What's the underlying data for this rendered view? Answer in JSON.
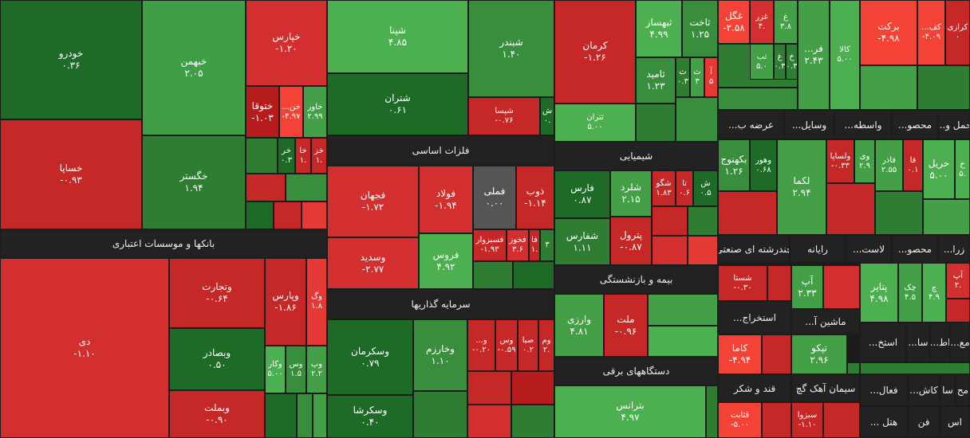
{
  "tiles": [
    {
      "name": "خودرو",
      "change": "۰.۳۶",
      "color": "#1e6b27"
    },
    {
      "name": "خساپا",
      "change": "-۰.۹۳",
      "color": "#c62828"
    },
    {
      "name": "خبهمن",
      "change": "۲.۰۵",
      "color": "#3f9e46"
    },
    {
      "name": "خگستر",
      "change": "۱.۹۴",
      "color": "#2e7d32"
    },
    {
      "name": "خپارس",
      "change": "-۱.۲۰",
      "color": "#d32f2f"
    },
    {
      "name": "ختوقا",
      "change": "-۱.۰۳",
      "color": "#b71c1c"
    },
    {
      "name": "خن...",
      "change": "-۴.۹۷",
      "color": "#f44336"
    },
    {
      "name": "خاور",
      "change": "۲.۹۹",
      "color": "#43a047"
    },
    {
      "name": "خر",
      "change": "۰.۳",
      "color": "#1e6b27"
    },
    {
      "name": "خا",
      "change": "۱.",
      "color": "#c62828"
    },
    {
      "name": "خز",
      "change": "۱.",
      "color": "#c62828"
    },
    {
      "name": "دی",
      "change": "-۱.۱۰",
      "color": "#d32f2f"
    },
    {
      "name": "وتجارت",
      "change": "-۰.۶۴",
      "color": "#c62828"
    },
    {
      "name": "وبصادر",
      "change": "۰.۵۰",
      "color": "#1e6b27"
    },
    {
      "name": "وبملت",
      "change": "-۰.۹۰",
      "color": "#c62828"
    },
    {
      "name": "وپارس",
      "change": "-۱.۸۶",
      "color": "#c62828"
    },
    {
      "name": "وگ",
      "change": "۱.۸",
      "color": "#e53935"
    },
    {
      "name": "وکار",
      "change": "۵.۰۰",
      "color": "#4caf50"
    },
    {
      "name": "وس",
      "change": "۱.۵",
      "color": "#388e3c"
    },
    {
      "name": "وپ",
      "change": "۲.۲",
      "color": "#43a047"
    },
    {
      "name": "شپنا",
      "change": "۴.۸۵",
      "color": "#4caf50"
    },
    {
      "name": "شتران",
      "change": "۰.۶۱",
      "color": "#1e6b27"
    },
    {
      "name": "شبندر",
      "change": "۱.۴۰",
      "color": "#388e3c"
    },
    {
      "name": "شپسا",
      "change": "-۰.۷۶",
      "color": "#c62828"
    },
    {
      "name": "ش",
      "change": "۰.",
      "color": "#1e6b27"
    },
    {
      "name": "فجهان",
      "change": "-۱.۷۲",
      "color": "#d32f2f"
    },
    {
      "name": "فولاد",
      "change": "-۱.۹۴",
      "color": "#d32f2f"
    },
    {
      "name": "فملی",
      "change": "۰.۰۰",
      "color": "#555555"
    },
    {
      "name": "ذوب",
      "change": "-۱.۱۴",
      "color": "#c62828"
    },
    {
      "name": "وسدید",
      "change": "-۲.۷۷",
      "color": "#d32f2f"
    },
    {
      "name": "فروس",
      "change": "۴.۹۲",
      "color": "#4caf50"
    },
    {
      "name": "فسبزوار",
      "change": "-۱.۹۳",
      "color": "#c62828"
    },
    {
      "name": "فخوز",
      "change": "۳.۶",
      "color": "#d32f2f"
    },
    {
      "name": "فا",
      "change": "۱.",
      "color": "#c62828"
    },
    {
      "name": "۳",
      "change": "",
      "color": "#2e7d32"
    },
    {
      "name": "وسکرمان",
      "change": "۰.۷۹",
      "color": "#1e6b27"
    },
    {
      "name": "وسکرشا",
      "change": "۰.۴۰",
      "color": "#1e6b27"
    },
    {
      "name": "وخارزم",
      "change": "۱.۱۰",
      "color": "#388e3c"
    },
    {
      "name": "و...",
      "change": "-۰.۲۰",
      "color": "#c62828"
    },
    {
      "name": "وس",
      "change": "-۰.۵۹",
      "color": "#c62828"
    },
    {
      "name": "صبا",
      "change": "۰.۲",
      "color": "#c62828"
    },
    {
      "name": "وم",
      "change": "۲.",
      "color": "#c62828"
    },
    {
      "name": "کرمان",
      "change": "-۱.۲۶",
      "color": "#c62828"
    },
    {
      "name": "ثتران",
      "change": "۵.۰۰",
      "color": "#4caf50"
    },
    {
      "name": "ثبهساز",
      "change": "۴.۹۹",
      "color": "#4caf50"
    },
    {
      "name": "ثاخت",
      "change": "۱.۲۵",
      "color": "#388e3c"
    },
    {
      "name": "ثامید",
      "change": "۱.۲۳",
      "color": "#388e3c"
    },
    {
      "name": "ث",
      "change": "۰.۳",
      "color": "#2e7d32"
    },
    {
      "name": "ث",
      "change": "۳",
      "color": "#43a047"
    },
    {
      "name": "آ",
      "change": "۵",
      "color": "#e53935"
    },
    {
      "name": "فارس",
      "change": "۰.۸۷",
      "color": "#1e6b27"
    },
    {
      "name": "شفارس",
      "change": "۱.۱۱",
      "color": "#2e7d32"
    },
    {
      "name": "شلرد",
      "change": "۲.۱۵",
      "color": "#43a047"
    },
    {
      "name": "پترول",
      "change": "-۰.۸۷",
      "color": "#c62828"
    },
    {
      "name": "شگو",
      "change": "۱.۸۳",
      "color": "#c62828"
    },
    {
      "name": "تا",
      "change": "۰.۶",
      "color": "#c62828"
    },
    {
      "name": "ش",
      "change": "۰.۵",
      "color": "#1e6b27"
    },
    {
      "name": "وارزی",
      "change": "۴.۸۱",
      "color": "#43a047"
    },
    {
      "name": "ملت",
      "change": "-۰.۹۶",
      "color": "#c62828"
    },
    {
      "name": "بترانس",
      "change": "۴.۹۷",
      "color": "#4caf50"
    },
    {
      "name": "غگل",
      "change": "-۲.۵۸",
      "color": "#f44336"
    },
    {
      "name": "غزر",
      "change": "۴.",
      "color": "#d32f2f"
    },
    {
      "name": "غ",
      "change": "۳.۸",
      "color": "#43a047"
    },
    {
      "name": "تب",
      "change": "۵.۰",
      "color": "#43a047"
    },
    {
      "name": "غ",
      "change": "۰.۳",
      "color": "#2e7d32"
    },
    {
      "name": "خ",
      "change": "۰.۳",
      "color": "#2e7d32"
    },
    {
      "name": "فر...",
      "change": "۲.۴۳",
      "color": "#43a047"
    },
    {
      "name": "کالا",
      "change": "۵.۰۰",
      "color": "#4caf50"
    },
    {
      "name": "برکت",
      "change": "-۴.۹۸",
      "color": "#f44336"
    },
    {
      "name": "کف...",
      "change": "-۴.۰۹",
      "color": "#f44336"
    },
    {
      "name": "کرازی",
      "change": "۰",
      "color": "#c62828"
    },
    {
      "name": "بکهنوج",
      "change": "۱.۲۶",
      "color": "#388e3c"
    },
    {
      "name": "وهور",
      "change": "۰.۶۸",
      "color": "#1e6b27"
    },
    {
      "name": "لکما",
      "change": "۲.۹۴",
      "color": "#43a047"
    },
    {
      "name": "ولساپا",
      "change": "-۰.۳۳",
      "color": "#c62828"
    },
    {
      "name": "وی",
      "change": "۲.۹",
      "color": "#43a047"
    },
    {
      "name": "فاذر",
      "change": "۲.۵۵",
      "color": "#43a047"
    },
    {
      "name": "فا",
      "change": "۰.۱",
      "color": "#c62828"
    },
    {
      "name": "حریل",
      "change": "۵.۰۰",
      "color": "#4caf50"
    },
    {
      "name": "ح",
      "change": "۵.",
      "color": "#4caf50"
    },
    {
      "name": "شستا",
      "change": "-۰.۳۰",
      "color": "#c62828"
    },
    {
      "name": "آپ",
      "change": "۲.۳۳",
      "color": "#43a047"
    },
    {
      "name": "پتایر",
      "change": "۴.۹۸",
      "color": "#4caf50"
    },
    {
      "name": "چک",
      "change": "۴.۵",
      "color": "#43a047"
    },
    {
      "name": "چ",
      "change": "۴.۹",
      "color": "#4caf50"
    },
    {
      "name": "آپ",
      "change": "۲.",
      "color": "#d32f2f"
    },
    {
      "name": "کاما",
      "change": "-۴.۹۴",
      "color": "#f44336"
    },
    {
      "name": "تپکو",
      "change": "۲.۹۶",
      "color": "#43a047"
    },
    {
      "name": "قثابت",
      "change": "-۵.۰۰",
      "color": "#f44336"
    },
    {
      "name": "سبزوا",
      "change": "-۱.۱۰",
      "color": "#c62828"
    }
  ],
  "headers": [
    "بانکها و موسسات اعتباری",
    "فلزات اساسی",
    "سرمایه گذاریها",
    "شیمیایی",
    "بیمه و بازنشستگی",
    "دستگاههای برقی",
    "حمل و...",
    "محصو...",
    "واسطه...",
    "وسایل...",
    "عرضه ب...",
    "چندرشته ای صنعتی",
    "رایانه",
    "لاست...",
    "محصو...",
    "زرا...",
    "استخراج...",
    "ماشین آ...",
    "استخ...",
    "سا...",
    "اط...",
    "مع...",
    "قند و شکر",
    "سیمان آهک گچ",
    "فعال...",
    "کاش...",
    "سا",
    "مح",
    "هتل ...",
    "فن",
    "اس"
  ]
}
